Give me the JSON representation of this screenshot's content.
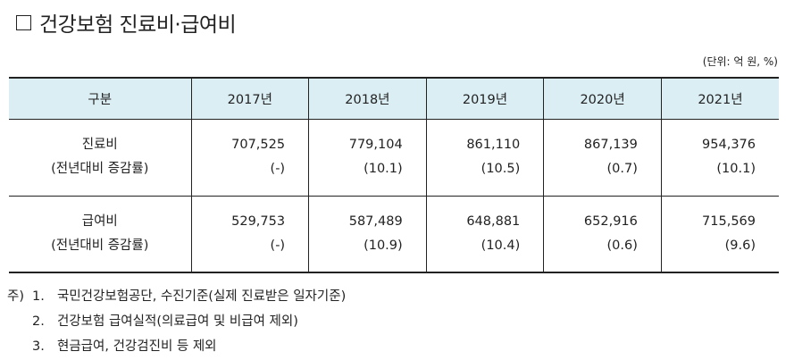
{
  "title": "건강보험 진료비·급여비",
  "unit_note": "(단위: 억 원, %)",
  "table": {
    "header": [
      "구분",
      "2017년",
      "2018년",
      "2019년",
      "2020년",
      "2021년"
    ],
    "rows": [
      {
        "name": "진료비",
        "sub": "(전년대비 증감률)",
        "values": [
          "707,525",
          "779,104",
          "861,110",
          "867,139",
          "954,376"
        ],
        "rates": [
          "(-)",
          "(10.1)",
          "(10.5)",
          "(0.7)",
          "(10.1)"
        ]
      },
      {
        "name": "급여비",
        "sub": "(전년대비 증감률)",
        "values": [
          "529,753",
          "587,489",
          "648,881",
          "652,916",
          "715,569"
        ],
        "rates": [
          "(-)",
          "(10.9)",
          "(10.4)",
          "(0.6)",
          "(9.6)"
        ]
      }
    ]
  },
  "notes": {
    "prefix": "주)",
    "items": [
      {
        "num": "1.",
        "text": "국민건강보험공단, 수진기준(실제 진료받은 일자기준)"
      },
      {
        "num": "2.",
        "text": "건강보험 급여실적(의료급여 및 비급여 제외)"
      },
      {
        "num": "3.",
        "text": "현금급여, 건강검진비 등 제외"
      }
    ]
  },
  "colors": {
    "header_bg": "#dbeef4",
    "border": "#222222"
  }
}
